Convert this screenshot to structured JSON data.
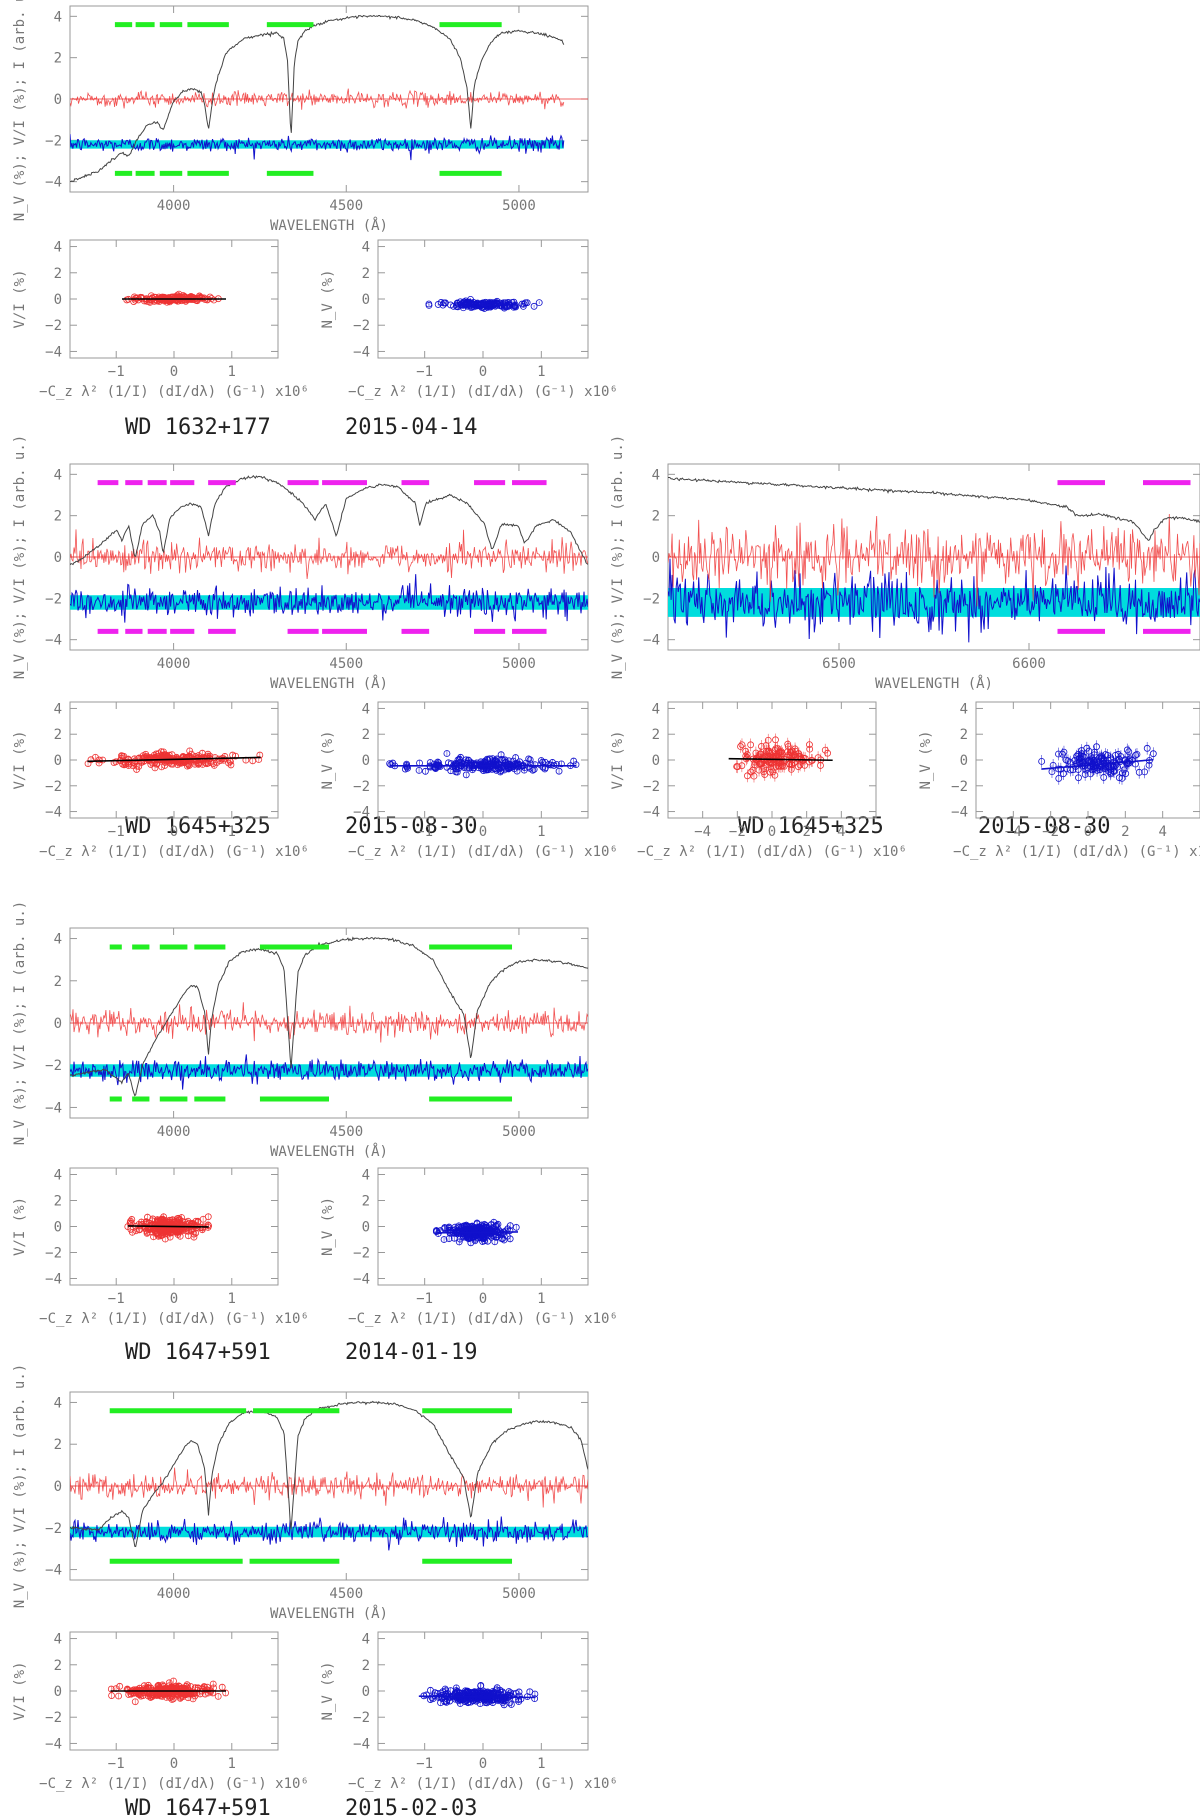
{
  "labels": {
    "spectrum_ylabel": "N_V (%); V/I (%); I (arb. u.)",
    "spectrum_xlabel": "WAVELENGTH (Å)",
    "vi_ylabel": "V/I (%)",
    "nv_ylabel": "N_V (%)",
    "scatter_xlabel": "−C_z λ² (1/I) (dI/dλ) (G⁻¹) x10⁶"
  },
  "colors": {
    "intensity": "#444444",
    "vi": "#ee3333",
    "nv": "#1111cc",
    "nv_error": "#00dddd",
    "mask_green": "#22ee22",
    "mask_magenta": "#ee22ee",
    "fit": "#000000"
  },
  "chart_data": [
    {
      "id": "wd1632_spec",
      "type": "line",
      "object": "WD 1632+177",
      "date": "2015-04-14",
      "xlim": [
        3700,
        5200
      ],
      "ylim": [
        -4.5,
        4.5
      ],
      "xticks": [
        4000,
        4500,
        5000
      ],
      "yticks": [
        -4,
        -2,
        0,
        2,
        4
      ],
      "data_end": 5130,
      "mask_color": "green",
      "mask_top_y": 3.6,
      "mask_bottom_y": -3.6,
      "mask_top": [
        [
          3830,
          3880
        ],
        [
          3890,
          3945
        ],
        [
          3960,
          4025
        ],
        [
          4040,
          4160
        ],
        [
          4270,
          4405
        ],
        [
          4770,
          4950
        ]
      ],
      "mask_bottom": [
        [
          3830,
          3880
        ],
        [
          3890,
          3945
        ],
        [
          3960,
          4025
        ],
        [
          4040,
          4160
        ],
        [
          4270,
          4405
        ],
        [
          4770,
          4950
        ]
      ],
      "noise": {
        "vi_sigma": 0.18,
        "nv_offset": -2.2,
        "nv_sigma": 0.18,
        "nv_band": 0.2
      },
      "intensity": {
        "x": [
          3700,
          3780,
          3850,
          3870,
          3890,
          3920,
          3950,
          3970,
          4000,
          4030,
          4060,
          4080,
          4090,
          4101,
          4110,
          4120,
          4150,
          4200,
          4250,
          4300,
          4320,
          4330,
          4340,
          4350,
          4360,
          4380,
          4400,
          4450,
          4500,
          4550,
          4600,
          4650,
          4700,
          4750,
          4800,
          4830,
          4850,
          4861,
          4870,
          4890,
          4920,
          4950,
          5000,
          5050,
          5100,
          5125,
          5130
        ],
        "y": [
          -4.0,
          -3.5,
          -2.6,
          -2.8,
          -2.1,
          -1.3,
          -1.1,
          -1.5,
          -0.1,
          0.4,
          0.5,
          0.3,
          -0.3,
          -1.5,
          -0.4,
          0.6,
          2.2,
          2.9,
          3.1,
          3.2,
          2.9,
          1.8,
          -1.9,
          1.8,
          2.8,
          3.3,
          3.5,
          3.8,
          3.9,
          4.0,
          4.0,
          3.95,
          3.8,
          3.5,
          2.9,
          2.0,
          0.5,
          -1.5,
          0.6,
          1.8,
          2.8,
          3.2,
          3.3,
          3.2,
          3.0,
          2.8,
          2.6
        ]
      }
    },
    {
      "id": "wd1632_vi",
      "type": "scatter",
      "object": "WD 1632+177",
      "date": "2015-04-14",
      "xlim": [
        -1.8,
        1.8
      ],
      "ylim": [
        -4.5,
        4.5
      ],
      "xticks": [
        -1,
        0,
        1
      ],
      "yticks": [
        -4,
        -2,
        0,
        2,
        4
      ],
      "cloud": {
        "xmin": -0.9,
        "xmax": 0.9,
        "center_y": 0.0,
        "sigma": 0.12,
        "n": 160
      },
      "fit": {
        "slope": 0.0,
        "intercept": 0.0
      }
    },
    {
      "id": "wd1632_nv",
      "type": "scatter",
      "object": "WD 1632+177",
      "date": "2015-04-14",
      "xlim": [
        -1.8,
        1.8
      ],
      "ylim": [
        -4.5,
        4.5
      ],
      "xticks": [
        -1,
        0,
        1
      ],
      "yticks": [
        -4,
        -2,
        0,
        2,
        4
      ],
      "cloud": {
        "xmin": -1.0,
        "xmax": 1.0,
        "center_y": -0.4,
        "sigma": 0.12,
        "n": 160
      },
      "fit": null
    },
    {
      "id": "wd1645b_spec",
      "type": "line",
      "object": "WD 1645+325",
      "date": "2015-08-30",
      "xlim": [
        3700,
        5200
      ],
      "ylim": [
        -4.5,
        4.5
      ],
      "xticks": [
        4000,
        4500,
        5000
      ],
      "yticks": [
        -4,
        -2,
        0,
        2,
        4
      ],
      "data_end": 5200,
      "mask_color": "magenta",
      "mask_top_y": 3.6,
      "mask_bottom_y": -3.6,
      "mask_top": [
        [
          3780,
          3840
        ],
        [
          3860,
          3910
        ],
        [
          3925,
          3980
        ],
        [
          3990,
          4060
        ],
        [
          4100,
          4180
        ],
        [
          4330,
          4420
        ],
        [
          4430,
          4560
        ],
        [
          4660,
          4740
        ],
        [
          4870,
          4960
        ],
        [
          4980,
          5080
        ]
      ],
      "mask_bottom": [
        [
          3780,
          3840
        ],
        [
          3860,
          3910
        ],
        [
          3925,
          3980
        ],
        [
          3990,
          4060
        ],
        [
          4100,
          4180
        ],
        [
          4330,
          4420
        ],
        [
          4430,
          4560
        ],
        [
          4660,
          4740
        ],
        [
          4870,
          4960
        ],
        [
          4980,
          5080
        ]
      ],
      "noise": {
        "vi_sigma": 0.35,
        "nv_offset": -2.2,
        "nv_sigma": 0.35,
        "nv_band": 0.35
      },
      "intensity": {
        "x": [
          3700,
          3750,
          3800,
          3835,
          3850,
          3870,
          3889,
          3910,
          3940,
          3960,
          3970,
          3990,
          4020,
          4050,
          4080,
          4101,
          4120,
          4150,
          4200,
          4250,
          4300,
          4340,
          4380,
          4410,
          4440,
          4471,
          4500,
          4550,
          4600,
          4650,
          4700,
          4713,
          4730,
          4800,
          4850,
          4900,
          4922,
          4950,
          5000,
          5016,
          5050,
          5100,
          5150,
          5200
        ],
        "y": [
          -0.4,
          0.1,
          0.8,
          1.3,
          0.8,
          1.5,
          -0.1,
          1.6,
          2.0,
          1.2,
          0.2,
          1.9,
          2.4,
          2.6,
          2.4,
          1.0,
          2.6,
          3.4,
          3.8,
          3.9,
          3.6,
          3.1,
          2.5,
          1.8,
          2.6,
          1.0,
          2.8,
          3.3,
          3.5,
          3.4,
          2.6,
          1.5,
          2.6,
          3.0,
          2.6,
          1.6,
          0.3,
          1.6,
          1.5,
          0.6,
          1.5,
          1.8,
          1.2,
          -0.4
        ]
      }
    },
    {
      "id": "wd1645b_vi",
      "type": "scatter",
      "object": "WD 1645+325",
      "date": "2015-08-30",
      "xlim": [
        -1.8,
        1.8
      ],
      "ylim": [
        -4.5,
        4.5
      ],
      "xticks": [
        -1,
        0,
        1
      ],
      "yticks": [
        -4,
        -2,
        0,
        2,
        4
      ],
      "cloud": {
        "xmin": -1.5,
        "xmax": 1.5,
        "center_y": 0.05,
        "sigma": 0.25,
        "n": 220
      },
      "fit": {
        "slope": 0.1,
        "intercept": 0.05
      }
    },
    {
      "id": "wd1645b_nv",
      "type": "scatter",
      "object": "WD 1645+325",
      "date": "2015-08-30",
      "xlim": [
        -1.8,
        1.8
      ],
      "ylim": [
        -4.5,
        4.5
      ],
      "xticks": [
        -1,
        0,
        1
      ],
      "yticks": [
        -4,
        -2,
        0,
        2,
        4
      ],
      "cloud": {
        "xmin": -1.6,
        "xmax": 1.6,
        "center_y": -0.4,
        "sigma": 0.25,
        "n": 220
      },
      "fit": {
        "slope": 0.0,
        "intercept": -0.45
      }
    },
    {
      "id": "wd1645r_spec",
      "type": "line",
      "object": "WD 1645+325",
      "date": "2015-08-30",
      "xlim": [
        6410,
        6690
      ],
      "ylim": [
        -4.5,
        4.5
      ],
      "xticks": [
        6500,
        6600
      ],
      "yticks": [
        -4,
        -2,
        0,
        2,
        4
      ],
      "data_end": 6690,
      "mask_color": "magenta",
      "mask_top_y": 3.6,
      "mask_bottom_y": -3.6,
      "mask_top": [
        [
          6615,
          6640
        ],
        [
          6660,
          6685
        ]
      ],
      "mask_bottom": [
        [
          6615,
          6640
        ],
        [
          6660,
          6685
        ]
      ],
      "noise": {
        "vi_sigma": 0.7,
        "nv_offset": -2.2,
        "nv_sigma": 0.7,
        "nv_band": 0.7
      },
      "intensity": {
        "x": [
          6410,
          6450,
          6500,
          6550,
          6600,
          6620,
          6625,
          6640,
          6655,
          6660,
          6663,
          6666,
          6672,
          6680,
          6690
        ],
        "y": [
          3.8,
          3.6,
          3.35,
          3.1,
          2.75,
          2.4,
          2.0,
          2.05,
          1.7,
          1.1,
          0.8,
          1.3,
          1.9,
          1.9,
          1.7
        ]
      }
    },
    {
      "id": "wd1645r_vi",
      "type": "scatter",
      "object": "WD 1645+325",
      "date": "2015-08-30",
      "xlim": [
        -6,
        6
      ],
      "ylim": [
        -4.5,
        4.5
      ],
      "xticks": [
        -4,
        -2,
        0,
        2,
        4
      ],
      "yticks": [
        -4,
        -2,
        0,
        2,
        4
      ],
      "cloud": {
        "xmin": -2.5,
        "xmax": 3.5,
        "center_y": 0.1,
        "sigma": 0.55,
        "n": 140
      },
      "fit": {
        "slope": -0.02,
        "intercept": 0.05
      }
    },
    {
      "id": "wd1645r_nv",
      "type": "scatter",
      "object": "WD 1645+325",
      "date": "2015-08-30",
      "xlim": [
        -6,
        6
      ],
      "ylim": [
        -4.5,
        4.5
      ],
      "xticks": [
        -4,
        -2,
        0,
        2,
        4
      ],
      "yticks": [
        -4,
        -2,
        0,
        2,
        4
      ],
      "cloud": {
        "xmin": -2.5,
        "xmax": 3.5,
        "center_y": -0.3,
        "sigma": 0.55,
        "n": 140
      },
      "fit": {
        "slope": 0.12,
        "intercept": -0.4
      }
    },
    {
      "id": "wd1647a_spec",
      "type": "line",
      "object": "WD 1647+591",
      "date": "2014-01-19",
      "xlim": [
        3700,
        5200
      ],
      "ylim": [
        -4.5,
        4.5
      ],
      "xticks": [
        4000,
        4500,
        5000
      ],
      "yticks": [
        -4,
        -2,
        0,
        2,
        4
      ],
      "data_end": 5200,
      "mask_color": "green",
      "mask_top_y": 3.6,
      "mask_bottom_y": -3.6,
      "mask_top": [
        [
          3815,
          3850
        ],
        [
          3880,
          3930
        ],
        [
          3960,
          4040
        ],
        [
          4060,
          4150
        ],
        [
          4250,
          4450
        ],
        [
          4740,
          4980
        ]
      ],
      "mask_bottom": [
        [
          3815,
          3850
        ],
        [
          3880,
          3930
        ],
        [
          3960,
          4040
        ],
        [
          4060,
          4150
        ],
        [
          4250,
          4450
        ],
        [
          4740,
          4980
        ]
      ],
      "noise": {
        "vi_sigma": 0.3,
        "nv_offset": -2.25,
        "nv_sigma": 0.25,
        "nv_band": 0.3
      },
      "intensity": {
        "x": [
          3700,
          3800,
          3850,
          3870,
          3889,
          3910,
          3940,
          3970,
          4000,
          4030,
          4050,
          4070,
          4090,
          4101,
          4110,
          4130,
          4160,
          4200,
          4250,
          4300,
          4320,
          4340,
          4360,
          4380,
          4420,
          4480,
          4520,
          4600,
          4650,
          4700,
          4750,
          4800,
          4840,
          4861,
          4880,
          4920,
          4960,
          5000,
          5050,
          5100,
          5150,
          5200
        ],
        "y": [
          -2.5,
          -2.2,
          -2.8,
          -2.4,
          -3.5,
          -2.0,
          -1.0,
          -0.2,
          0.6,
          1.4,
          1.8,
          1.7,
          0.5,
          -1.5,
          0.2,
          1.8,
          2.9,
          3.4,
          3.5,
          3.3,
          2.5,
          -2.2,
          2.4,
          3.2,
          3.7,
          3.9,
          4.0,
          4.0,
          3.9,
          3.6,
          3.0,
          1.5,
          0.4,
          -1.7,
          0.6,
          2.0,
          2.6,
          2.9,
          3.0,
          2.95,
          2.8,
          2.6
        ]
      }
    },
    {
      "id": "wd1647a_vi",
      "type": "scatter",
      "object": "WD 1647+591",
      "date": "2014-01-19",
      "xlim": [
        -1.8,
        1.8
      ],
      "ylim": [
        -4.5,
        4.5
      ],
      "xticks": [
        -1,
        0,
        1
      ],
      "yticks": [
        -4,
        -2,
        0,
        2,
        4
      ],
      "cloud": {
        "xmin": -0.8,
        "xmax": 0.6,
        "center_y": 0.0,
        "sigma": 0.3,
        "n": 260
      },
      "fit": {
        "slope": -0.05,
        "intercept": 0.0
      }
    },
    {
      "id": "wd1647a_nv",
      "type": "scatter",
      "object": "WD 1647+591",
      "date": "2014-01-19",
      "xlim": [
        -1.8,
        1.8
      ],
      "ylim": [
        -4.5,
        4.5
      ],
      "xticks": [
        -1,
        0,
        1
      ],
      "yticks": [
        -4,
        -2,
        0,
        2,
        4
      ],
      "cloud": {
        "xmin": -0.8,
        "xmax": 0.6,
        "center_y": -0.4,
        "sigma": 0.3,
        "n": 260
      },
      "fit": {
        "slope": 0.05,
        "intercept": -0.45
      }
    },
    {
      "id": "wd1647b_spec",
      "type": "line",
      "object": "WD 1647+591",
      "date": "2015-02-03",
      "xlim": [
        3700,
        5200
      ],
      "ylim": [
        -4.5,
        4.5
      ],
      "xticks": [
        4000,
        4500,
        5000
      ],
      "yticks": [
        -4,
        -2,
        0,
        2,
        4
      ],
      "data_end": 5200,
      "mask_color": "green",
      "mask_top_y": 3.6,
      "mask_bottom_y": -3.6,
      "mask_top": [
        [
          3815,
          4210
        ],
        [
          4230,
          4480
        ],
        [
          4720,
          4980
        ]
      ],
      "mask_bottom": [
        [
          3815,
          4200
        ],
        [
          4220,
          4480
        ],
        [
          4720,
          4980
        ]
      ],
      "noise": {
        "vi_sigma": 0.3,
        "nv_offset": -2.2,
        "nv_sigma": 0.25,
        "nv_band": 0.25
      },
      "intensity": {
        "x": [
          3700,
          3780,
          3820,
          3850,
          3870,
          3889,
          3910,
          3940,
          3970,
          4000,
          4030,
          4050,
          4070,
          4090,
          4101,
          4110,
          4130,
          4160,
          4200,
          4250,
          4300,
          4320,
          4340,
          4360,
          4380,
          4420,
          4480,
          4520,
          4600,
          4650,
          4700,
          4750,
          4800,
          4840,
          4861,
          4880,
          4920,
          4960,
          5000,
          5050,
          5100,
          5150,
          5180,
          5200
        ],
        "y": [
          -2.0,
          -2.1,
          -1.5,
          -1.2,
          -1.5,
          -3.0,
          -1.2,
          -0.4,
          0.2,
          1.0,
          1.8,
          2.2,
          2.0,
          0.8,
          -1.4,
          0.4,
          2.0,
          3.0,
          3.5,
          3.6,
          3.3,
          2.5,
          -2.2,
          2.4,
          3.2,
          3.7,
          3.9,
          4.0,
          4.0,
          3.9,
          3.6,
          3.0,
          1.5,
          0.4,
          -1.6,
          0.6,
          2.0,
          2.6,
          2.9,
          3.1,
          3.05,
          2.8,
          2.2,
          0.8
        ]
      }
    },
    {
      "id": "wd1647b_vi",
      "type": "scatter",
      "object": "WD 1647+591",
      "date": "2015-02-03",
      "xlim": [
        -1.8,
        1.8
      ],
      "ylim": [
        -4.5,
        4.5
      ],
      "xticks": [
        -1,
        0,
        1
      ],
      "yticks": [
        -4,
        -2,
        0,
        2,
        4
      ],
      "cloud": {
        "xmin": -1.1,
        "xmax": 0.9,
        "center_y": 0.0,
        "sigma": 0.25,
        "n": 260
      },
      "fit": {
        "slope": 0.0,
        "intercept": 0.0
      }
    },
    {
      "id": "wd1647b_nv",
      "type": "scatter",
      "object": "WD 1647+591",
      "date": "2015-02-03",
      "xlim": [
        -1.8,
        1.8
      ],
      "ylim": [
        -4.5,
        4.5
      ],
      "xticks": [
        -1,
        0,
        1
      ],
      "yticks": [
        -4,
        -2,
        0,
        2,
        4
      ],
      "cloud": {
        "xmin": -1.1,
        "xmax": 0.9,
        "center_y": -0.4,
        "sigma": 0.25,
        "n": 260
      },
      "fit": {
        "slope": -0.05,
        "intercept": -0.45
      }
    }
  ],
  "captions": [
    {
      "object": "WD 1632+177",
      "date": "2015-04-14"
    },
    {
      "object": "WD 1645+325",
      "date": "2015-08-30"
    },
    {
      "object": "WD 1645+325",
      "date": "2015-08-30"
    },
    {
      "object": "WD 1647+591",
      "date": "2014-01-19"
    },
    {
      "object": "WD 1647+591",
      "date": "2015-02-03"
    }
  ]
}
